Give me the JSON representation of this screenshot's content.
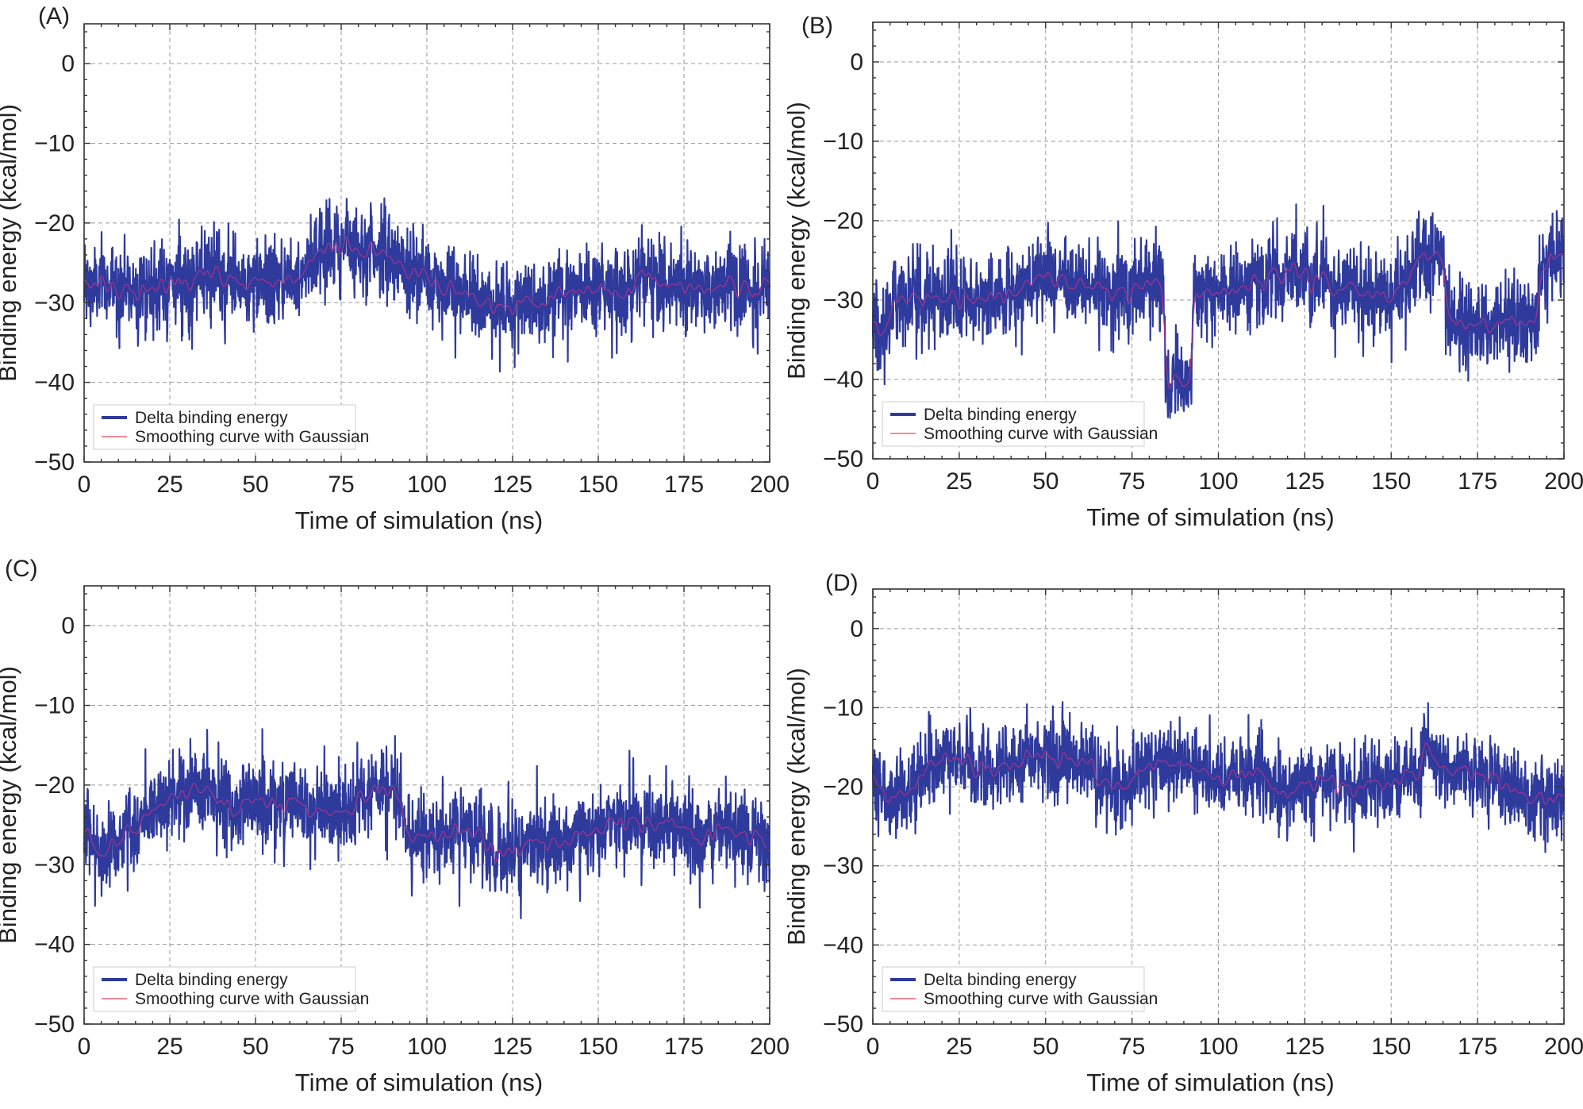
{
  "figure": {
    "panels": [
      {
        "letter": "(A)",
        "chart_index": 0
      },
      {
        "letter": "(B)",
        "chart_index": 1
      },
      {
        "letter": "(C)",
        "chart_index": 2
      },
      {
        "letter": "(D)",
        "chart_index": 3
      }
    ]
  },
  "colors": {
    "delta": "#2e3a9c",
    "smooth": "#f28b96",
    "smooth_in_band": "#b0348c"
  },
  "chart_data": [
    {
      "type": "line",
      "panel": "(A)",
      "title": "",
      "xlabel": "Time of simulation (ns)",
      "ylabel": "Binding energy (kcal/mol)",
      "xlim": [
        0,
        200
      ],
      "ylim": [
        -50,
        5
      ],
      "xticks": [
        0,
        25,
        50,
        75,
        100,
        125,
        150,
        175,
        200
      ],
      "yticks": [
        0,
        -10,
        -20,
        -30,
        -40,
        -50
      ],
      "xtick_labels": [
        "0",
        "25",
        "50",
        "75",
        "100",
        "125",
        "150",
        "175",
        "200"
      ],
      "ytick_labels": [
        "0",
        "−10",
        "−20",
        "−30",
        "−40",
        "−50"
      ],
      "grid": true,
      "legend_position": "lower-left",
      "series": [
        {
          "name": "Delta binding energy",
          "color": "#2e3a9c",
          "noise": 2.8,
          "x": [
            0,
            10,
            20,
            30,
            40,
            50,
            60,
            65,
            70,
            75,
            80,
            85,
            90,
            95,
            100,
            105,
            110,
            115,
            120,
            125,
            130,
            140,
            150,
            160,
            170,
            180,
            190,
            200
          ],
          "y": [
            -28,
            -28,
            -28,
            -27,
            -27,
            -28,
            -27,
            -25,
            -23,
            -23,
            -23,
            -23,
            -25,
            -26,
            -27,
            -28,
            -29,
            -30,
            -30,
            -31,
            -30,
            -28,
            -28,
            -28,
            -27,
            -28,
            -28,
            -28
          ]
        },
        {
          "name": "Smoothing curve with Gaussian",
          "color": "#f28b96"
        }
      ]
    },
    {
      "type": "line",
      "panel": "(B)",
      "title": "",
      "xlabel": "Time of simulation (ns)",
      "ylabel": "Binding energy (kcal/mol)",
      "xlim": [
        0,
        200
      ],
      "ylim": [
        -50,
        5
      ],
      "xticks": [
        0,
        25,
        50,
        75,
        100,
        125,
        150,
        175,
        200
      ],
      "yticks": [
        0,
        -10,
        -20,
        -30,
        -40,
        -50
      ],
      "xtick_labels": [
        "0",
        "25",
        "50",
        "75",
        "100",
        "125",
        "150",
        "175",
        "200"
      ],
      "ytick_labels": [
        "0",
        "−10",
        "−20",
        "−30",
        "−40",
        "−50"
      ],
      "grid": true,
      "legend_position": "lower-left",
      "series": [
        {
          "name": "Delta binding energy",
          "color": "#2e3a9c",
          "noise": 2.8,
          "x": [
            0,
            3,
            6,
            10,
            20,
            30,
            40,
            50,
            60,
            70,
            80,
            84,
            85,
            92,
            93,
            100,
            110,
            120,
            130,
            140,
            150,
            155,
            165,
            166,
            170,
            180,
            192,
            194,
            200
          ],
          "y": [
            -32,
            -35,
            -30,
            -29,
            -30,
            -30,
            -29,
            -27,
            -28,
            -29,
            -28,
            -28,
            -40,
            -40,
            -29,
            -29,
            -28,
            -27,
            -27,
            -29,
            -30,
            -26,
            -24,
            -33,
            -33,
            -33,
            -33,
            -26,
            -23
          ]
        },
        {
          "name": "Smoothing curve with Gaussian",
          "color": "#f28b96"
        }
      ]
    },
    {
      "type": "line",
      "panel": "(C)",
      "title": "",
      "xlabel": "Time of simulation (ns)",
      "ylabel": "Binding energy (kcal/mol)",
      "xlim": [
        0,
        200
      ],
      "ylim": [
        -50,
        5
      ],
      "xticks": [
        0,
        25,
        50,
        75,
        100,
        125,
        150,
        175,
        200
      ],
      "yticks": [
        0,
        -10,
        -20,
        -30,
        -40,
        -50
      ],
      "xtick_labels": [
        "0",
        "25",
        "50",
        "75",
        "100",
        "125",
        "150",
        "175",
        "200"
      ],
      "ytick_labels": [
        "0",
        "−10",
        "−20",
        "−30",
        "−40",
        "−50"
      ],
      "grid": true,
      "legend_position": "lower-left",
      "series": [
        {
          "name": "Delta binding energy",
          "color": "#2e3a9c",
          "noise": 2.8,
          "x": [
            0,
            5,
            10,
            15,
            20,
            30,
            35,
            40,
            50,
            60,
            70,
            75,
            80,
            90,
            95,
            100,
            110,
            120,
            130,
            140,
            150,
            160,
            170,
            180,
            190,
            200
          ],
          "y": [
            -27,
            -28,
            -27,
            -25,
            -23,
            -21,
            -20,
            -23,
            -22,
            -22,
            -24,
            -24,
            -22,
            -21,
            -26,
            -26,
            -26,
            -28,
            -27,
            -27,
            -26,
            -25,
            -25,
            -26,
            -26,
            -27
          ]
        },
        {
          "name": "Smoothing curve with Gaussian",
          "color": "#f28b96"
        }
      ]
    },
    {
      "type": "line",
      "panel": "(D)",
      "title": "",
      "xlabel": "Time of simulation (ns)",
      "ylabel": "Binding energy (kcal/mol)",
      "xlim": [
        0,
        200
      ],
      "ylim": [
        -50,
        5
      ],
      "xticks": [
        0,
        25,
        50,
        75,
        100,
        125,
        150,
        175,
        200
      ],
      "yticks": [
        0,
        -10,
        -20,
        -30,
        -40,
        -50
      ],
      "xtick_labels": [
        "0",
        "25",
        "50",
        "75",
        "100",
        "125",
        "150",
        "175",
        "200"
      ],
      "ytick_labels": [
        "0",
        "−10",
        "−20",
        "−30",
        "−40",
        "−50"
      ],
      "grid": true,
      "legend_position": "lower-left",
      "series": [
        {
          "name": "Delta binding energy",
          "color": "#2e3a9c",
          "noise": 2.6,
          "x": [
            0,
            5,
            10,
            15,
            20,
            30,
            40,
            50,
            60,
            70,
            75,
            80,
            90,
            100,
            110,
            120,
            130,
            140,
            150,
            158,
            160,
            162,
            170,
            180,
            190,
            200
          ],
          "y": [
            -18,
            -22,
            -21,
            -18,
            -16,
            -18,
            -17,
            -16,
            -17,
            -20,
            -19,
            -17,
            -17,
            -19,
            -18,
            -21,
            -19,
            -20,
            -20,
            -18,
            -13,
            -17,
            -17,
            -19,
            -21,
            -22
          ]
        },
        {
          "name": "Smoothing curve with Gaussian",
          "color": "#f28b96"
        }
      ]
    }
  ]
}
